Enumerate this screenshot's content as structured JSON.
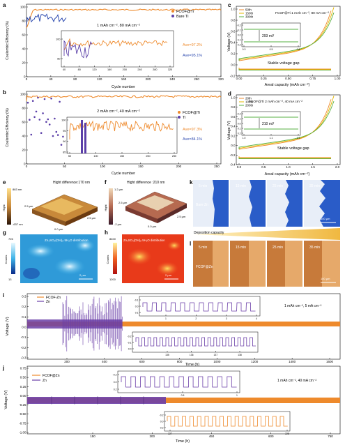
{
  "colors": {
    "orange": "#ee8a2c",
    "purple": "#6b3fa8",
    "blue": "#2e4bb0",
    "green": "#57b043",
    "yellow": "#e6b800",
    "black": "#000000"
  },
  "panel_a": {
    "letter": "a",
    "ylabel": "Coulombic Efficiency (%)",
    "xlabel": "Cycle number",
    "condition": "1 mAh cm⁻², 80 mA cm⁻²",
    "legend": [
      "FCOF@Ti",
      "Bare Ti"
    ],
    "ave1": "Ave=97.2%",
    "ave2": "Ave=95.1%",
    "yticks": [
      "0",
      "20",
      "40",
      "60",
      "80",
      "100"
    ],
    "xticks": [
      "0",
      "40",
      "80",
      "120",
      "160",
      "200",
      "240",
      "280",
      "320"
    ],
    "inset_yticks": [
      "80",
      "100"
    ],
    "inset_xticks": [
      "40",
      "80",
      "120",
      "160",
      "200",
      "240",
      "280",
      "320"
    ]
  },
  "panel_b": {
    "letter": "b",
    "ylabel": "Coulombic Efficiency (%)",
    "xlabel": "Cycle number",
    "condition": "2 mAh cm⁻², 40 mA cm⁻²",
    "legend": [
      "FCOF@Ti",
      "Ti"
    ],
    "ave1": "Ave=97.3%",
    "ave2": "Ave=84.1%",
    "yticks": [
      "0",
      "20",
      "40",
      "60",
      "80",
      "100"
    ],
    "xticks": [
      "0",
      "50",
      "100",
      "150",
      "200",
      "250"
    ],
    "inset_yticks": [
      "85",
      "90",
      "95",
      "100"
    ],
    "inset_xticks": [
      "50",
      "100",
      "150",
      "200",
      "250"
    ]
  },
  "panel_c": {
    "letter": "c",
    "title": "FCOF@Ti   1 mAh cm⁻², 80 mA cm⁻²",
    "legend": [
      "50th",
      "150th",
      "300th"
    ],
    "ylabel": "Voltage (V)",
    "xlabel": "Areal capacity (mAh cm⁻²)",
    "annotation": "293 mV",
    "gap_label": "Stable voltage gap",
    "yticks": [
      "-0.2",
      "0.0",
      "0.2",
      "0.4",
      "0.6",
      "0.8",
      "1.0"
    ],
    "xticks": [
      "0.00",
      "0.25",
      "0.50",
      "0.75",
      "1.00"
    ],
    "inset_yticks": [
      "0.2",
      "0.1",
      "0.0",
      "-0.1",
      "-0.2"
    ],
    "inset_xticks": [
      "0.3",
      "0.5",
      "0.8"
    ]
  },
  "panel_d": {
    "letter": "d",
    "title": "FCOF@Ti   2 mAh cm⁻², 40 mA cm⁻²",
    "legend": [
      "20th",
      "100th",
      "200th"
    ],
    "ylabel": "Voltage (V)",
    "xlabel": "Areal capacity (mAh cm⁻²)",
    "annotation": "210 mV",
    "gap_label": "Stable voltage gap",
    "yticks": [
      "-0.4",
      "-0.2",
      "0.0",
      "0.2",
      "0.4",
      "0.6",
      "0.8",
      "1.0"
    ],
    "xticks": [
      "0.0",
      "0.5",
      "1.0",
      "1.5",
      "2.0"
    ],
    "inset_yticks": [
      "0.2",
      "0.1",
      "0.0",
      "-0.1",
      "-0.2"
    ],
    "inset_xticks": [
      "1.0",
      "1.1",
      "1.2"
    ]
  },
  "panel_e": {
    "letter": "e",
    "title": "Hight difference:170 nm",
    "scale_top": "883 nm",
    "scale_bottom": "-637 nm",
    "scale_label": "Hight",
    "axis_labels": [
      "2.5 μm",
      "0.0 μm",
      "2.5 μm"
    ]
  },
  "panel_f": {
    "letter": "f",
    "title": "Hight difference :210 nm",
    "scale_top": "1.2 μm",
    "scale_bottom": "-2 μm",
    "scale_label": "Hight",
    "axis_labels": [
      "2.5 μm",
      "0.0 μm",
      "2.5 μm"
    ]
  },
  "panel_g": {
    "letter": "g",
    "title": "Zn₄SO₄(OH)₆·5H₂O distribution",
    "scale_top": "726",
    "scale_bottom": "13",
    "scale_label": "Counts",
    "scalebar": "2 μm"
  },
  "panel_h": {
    "letter": "h",
    "title": "Zn₄SO₄(OH)₆·5H₂O distribution",
    "scale_top": "8400",
    "scale_bottom": "1200",
    "scale_label": "Counts",
    "scalebar": "2 μm"
  },
  "panel_k": {
    "letter": "k",
    "times": [
      "5 min",
      "15 min",
      "25 min",
      "35 min"
    ],
    "label": "Bare Zn",
    "scalebar": "100 μm",
    "deposition": "Deposition capacity"
  },
  "panel_l": {
    "letter": "l",
    "times": [
      "5 min",
      "15 min",
      "25 min",
      "35 min"
    ],
    "label": "FCOF@Zn",
    "scalebar": "100 μm"
  },
  "panel_i": {
    "letter": "i",
    "legend": [
      "FCOF-Zn",
      "Zn"
    ],
    "ylabel": "Voltage (V)",
    "xlabel": "Time (h)",
    "condition": "1 mAh cm⁻², 5 mA cm⁻²",
    "yticks": [
      "-0.3",
      "-0.2",
      "-0.1",
      "0.0",
      "0.1",
      "0.2",
      "0.3"
    ],
    "xticks": [
      "200",
      "400",
      "600",
      "800",
      "1000",
      "1200",
      "1400",
      "1600"
    ],
    "inset1_xticks": [
      "1",
      "2",
      "3",
      "4"
    ],
    "inset1_yticks": [
      "0.1",
      "0.0",
      "-0.1"
    ],
    "inset2_xticks": [
      "135",
      "136",
      "137",
      "138"
    ],
    "inset2_yticks": [
      "0.0",
      "-0.1",
      "-0.2"
    ]
  },
  "panel_j": {
    "letter": "j",
    "legend": [
      "FCOF@Zn",
      "Zn"
    ],
    "ylabel": "Voltage (V)",
    "xlabel": "Time (h)",
    "condition": "1 mAh cm⁻², 40 mA cm⁻²",
    "yticks": [
      "-1.00",
      "-0.75",
      "-0.50",
      "-0.25",
      "0.00",
      "0.25",
      "0.50",
      "0.75"
    ],
    "xticks": [
      "150",
      "300",
      "450",
      "600",
      "750"
    ],
    "inset1_xticks": [
      "0.5",
      "1"
    ],
    "inset1_yticks": [
      "0.2",
      "0.0",
      "-0.2"
    ],
    "inset2_xticks": [
      "227",
      "228"
    ],
    "inset2_yticks": [
      "0.2",
      "0.0",
      "-0.2"
    ]
  }
}
